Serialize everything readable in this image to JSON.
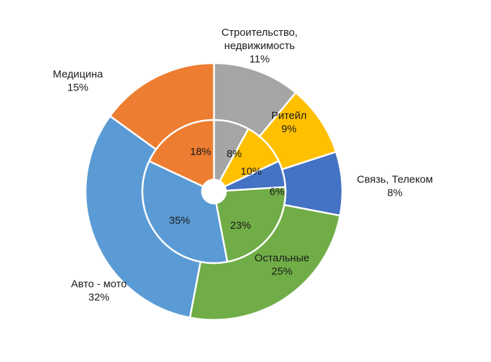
{
  "chart_data": {
    "type": "doughnut",
    "start_angle_deg": 90,
    "direction": "clockwise",
    "categories": [
      "Строительство, недвижимость",
      "Ритейл",
      "Связь, Телеком",
      "Остальные",
      "Авто - мото",
      "Медицина"
    ],
    "colors": [
      "#a5a5a5",
      "#ffc000",
      "#4472c4",
      "#70ad47",
      "#5b9bd5",
      "#ed7d31"
    ],
    "series": [
      {
        "ring": "outer",
        "values": [
          11,
          9,
          8,
          25,
          32,
          15
        ],
        "labels": [
          "11%",
          "9%",
          "8%",
          "25%",
          "32%",
          "15%"
        ]
      },
      {
        "ring": "inner",
        "values": [
          8,
          10,
          6,
          23,
          35,
          18
        ],
        "labels": [
          "8%",
          "10%",
          "6%",
          "23%",
          "35%",
          "18%"
        ]
      }
    ],
    "category_labels": [
      {
        "lines": [
          "Строительство,",
          "недвижимость"
        ]
      },
      {
        "lines": [
          "Ритейл"
        ]
      },
      {
        "lines": [
          "Связь, Телеком"
        ]
      },
      {
        "lines": [
          "Остальные"
        ]
      },
      {
        "lines": [
          "Авто - мото"
        ]
      },
      {
        "lines": [
          "Медицина"
        ]
      }
    ]
  }
}
